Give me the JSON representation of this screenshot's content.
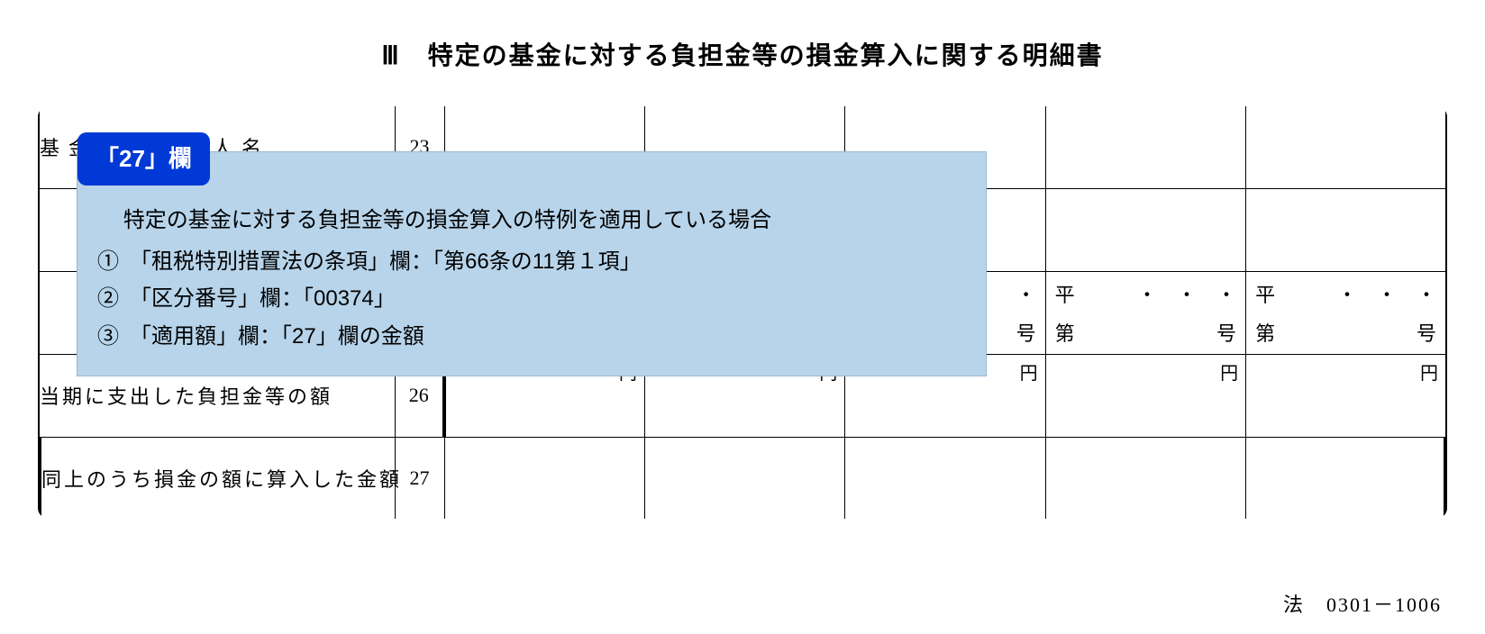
{
  "title": "Ⅲ　特定の基金に対する負担金等の損金算入に関する明細書",
  "rows": {
    "r23": {
      "label": "基金に係る法人名",
      "num": "23"
    },
    "r24": {
      "label": "",
      "num": ""
    },
    "r25": {
      "label": "",
      "num": "",
      "cells": [
        {
          "era": "",
          "dots": "・",
          "dai": "",
          "gou": "号"
        },
        {
          "era": "平",
          "dots": "・　・　・",
          "dai": "第",
          "gou": "号"
        },
        {
          "era": "平",
          "dots": "・　・　・",
          "dai": "第",
          "gou": "号"
        }
      ]
    },
    "r26": {
      "label": "当期に支出した負担金等の額",
      "num": "26",
      "yen": "円"
    },
    "r27": {
      "label": "同上のうち損金の額に算入した金額",
      "num": "27"
    }
  },
  "callout": {
    "badge": "「27」欄",
    "lead": "特定の基金に対する負担金等の損金算入の特例を適用している場合",
    "items": [
      "①　「租税特別措置法の条項」欄：「第66条の11第１項」",
      "②　「区分番号」欄：「00374」",
      "③　「適用額」欄：「27」欄の金額"
    ]
  },
  "footer": "法　0301－1006",
  "colors": {
    "callout_bg": "#b7d4ea",
    "badge_bg": "#0039d6",
    "badge_fg": "#ffffff",
    "line": "#000000"
  }
}
